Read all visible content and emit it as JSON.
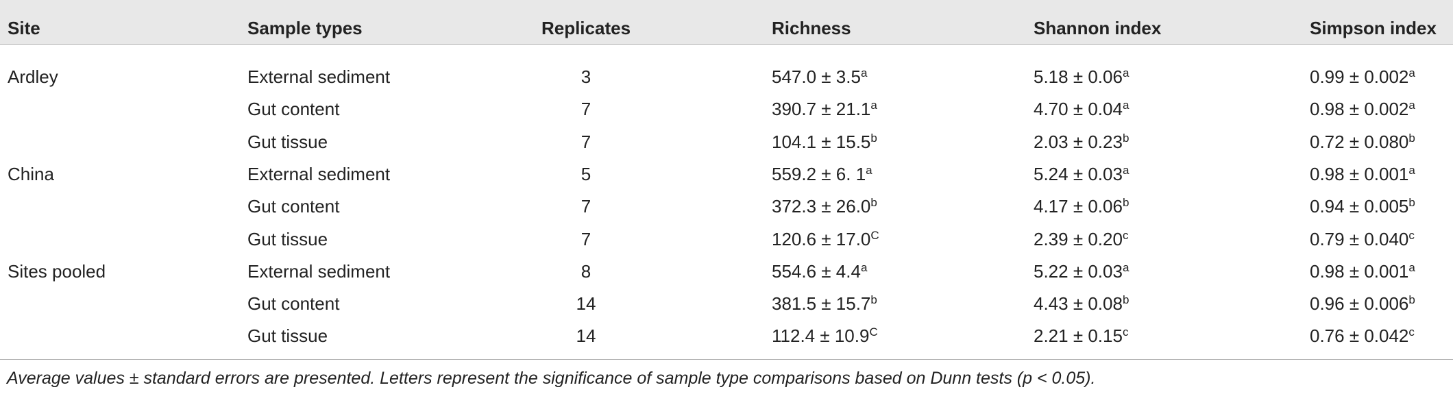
{
  "table": {
    "columns": [
      "Site",
      "Sample types",
      "Replicates",
      "Richness",
      "Shannon index",
      "Simpson index"
    ],
    "groups": [
      {
        "site": "Ardley",
        "rows": [
          [
            "External sediment",
            "3",
            {
              "text": "547.0 ± 3.5",
              "sup": "a"
            },
            {
              "text": "5.18 ± 0.06",
              "sup": "a"
            },
            {
              "text": "0.99 ± 0.002",
              "sup": "a"
            }
          ],
          [
            "Gut content",
            "7",
            {
              "text": "390.7 ± 21.1",
              "sup": "a"
            },
            {
              "text": "4.70 ± 0.04",
              "sup": "a"
            },
            {
              "text": "0.98 ± 0.002",
              "sup": "a"
            }
          ],
          [
            "Gut tissue",
            "7",
            {
              "text": "104.1 ± 15.5",
              "sup": "b"
            },
            {
              "text": "2.03 ± 0.23",
              "sup": "b"
            },
            {
              "text": "0.72 ± 0.080",
              "sup": "b"
            }
          ]
        ]
      },
      {
        "site": "China",
        "rows": [
          [
            "External sediment",
            "5",
            {
              "text": "559.2 ± 6. 1",
              "sup": "a"
            },
            {
              "text": "5.24 ± 0.03",
              "sup": "a"
            },
            {
              "text": "0.98 ± 0.001",
              "sup": "a"
            }
          ],
          [
            "Gut content",
            "7",
            {
              "text": "372.3 ± 26.0",
              "sup": "b"
            },
            {
              "text": "4.17 ± 0.06",
              "sup": "b"
            },
            {
              "text": "0.94 ± 0.005",
              "sup": "b"
            }
          ],
          [
            "Gut tissue",
            "7",
            {
              "text": "120.6 ± 17.0",
              "sup": "C"
            },
            {
              "text": "2.39 ± 0.20",
              "sup": "c"
            },
            {
              "text": "0.79 ± 0.040",
              "sup": "c"
            }
          ]
        ]
      },
      {
        "site": "Sites pooled",
        "rows": [
          [
            "External sediment",
            "8",
            {
              "text": "554.6 ± 4.4",
              "sup": "a"
            },
            {
              "text": "5.22 ± 0.03",
              "sup": "a"
            },
            {
              "text": "0.98 ± 0.001",
              "sup": "a"
            }
          ],
          [
            "Gut content",
            "14",
            {
              "text": "381.5 ± 15.7",
              "sup": "b"
            },
            {
              "text": "4.43 ± 0.08",
              "sup": "b"
            },
            {
              "text": "0.96 ± 0.006",
              "sup": "b"
            }
          ],
          [
            "Gut tissue",
            "14",
            {
              "text": "112.4 ± 10.9",
              "sup": "C"
            },
            {
              "text": "2.21 ± 0.15",
              "sup": "c"
            },
            {
              "text": "0.76 ± 0.042",
              "sup": "c"
            }
          ]
        ]
      }
    ],
    "footnote": "Average values ± standard errors are presented. Letters represent the significance of sample type comparisons based on Dunn tests (p < 0.05)."
  }
}
